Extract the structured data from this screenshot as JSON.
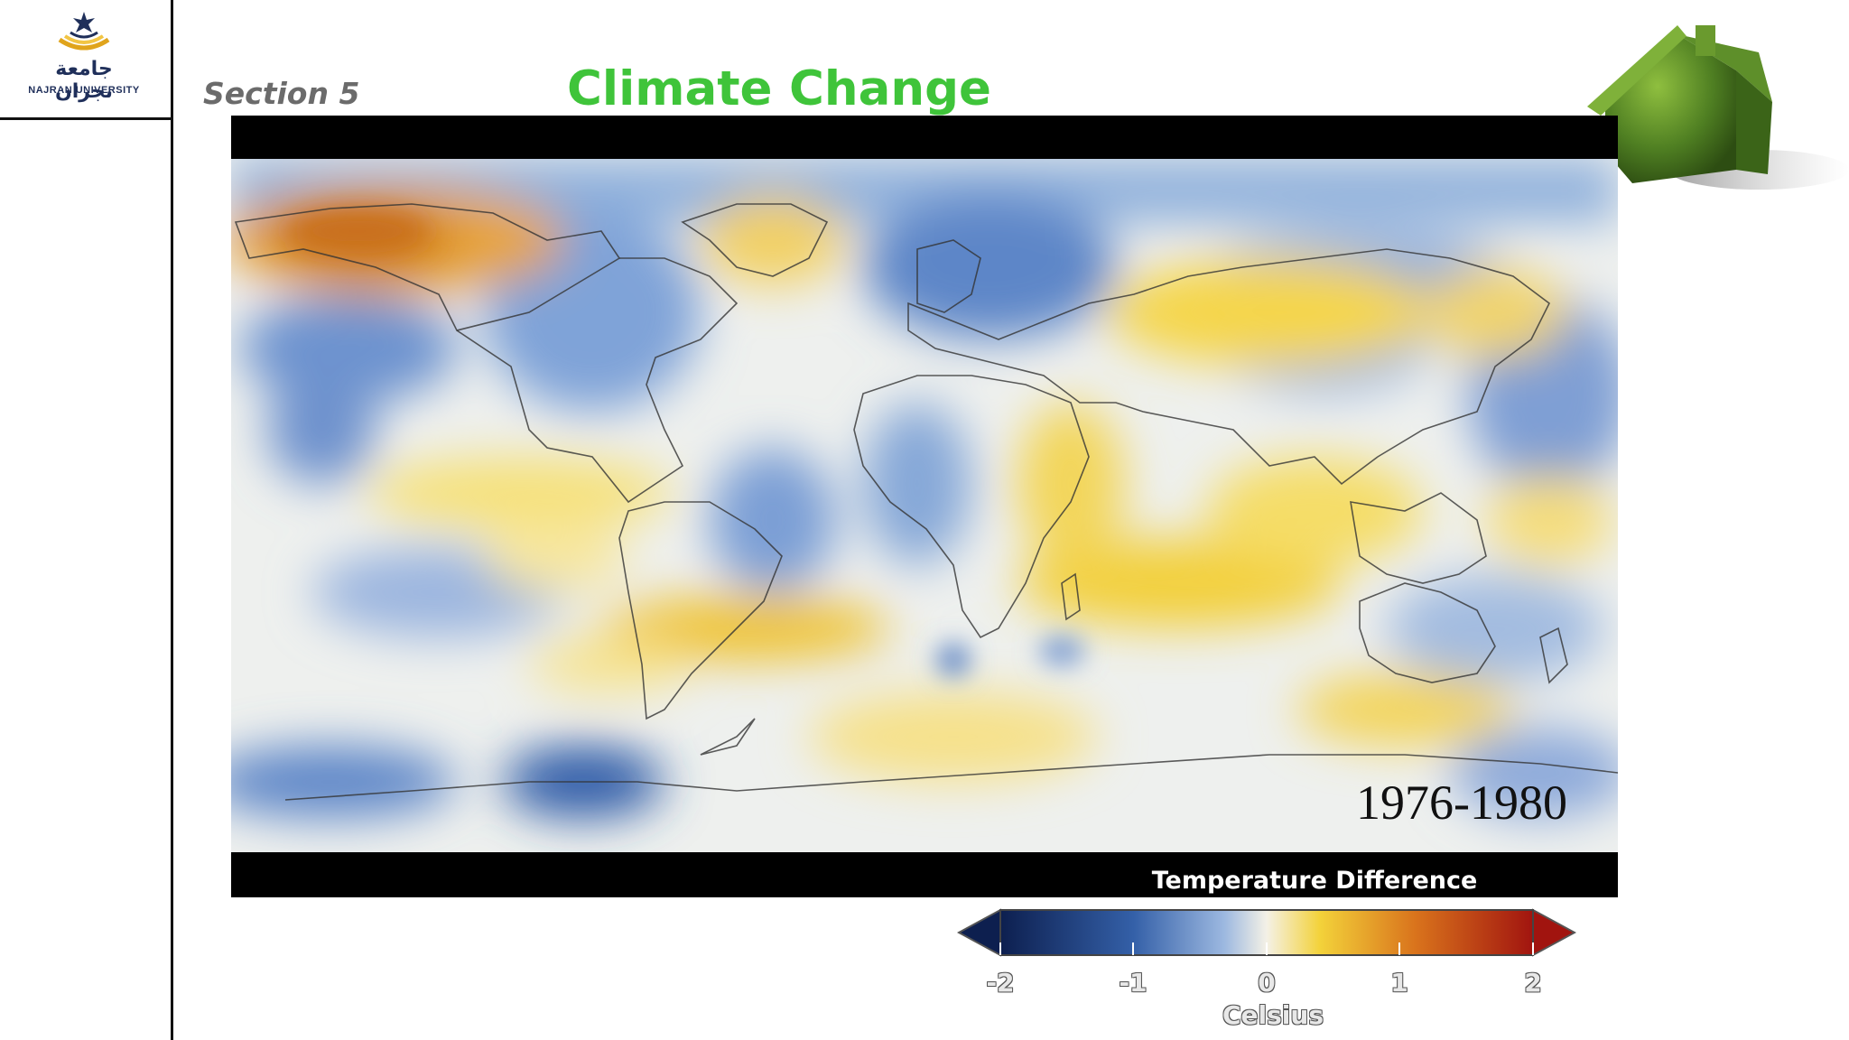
{
  "header": {
    "logo_arabic": "جامعة نجران",
    "logo_english": "NAJRAN UNIVERSITY",
    "section_label": "Section 5",
    "title": "Climate Change"
  },
  "map": {
    "year_range": "1976-1980",
    "legend_title": "Temperature Difference",
    "legend_ticks": [
      "-2",
      "-1",
      "0",
      "1",
      "2"
    ],
    "legend_unit": "Celsius",
    "scale_colors": [
      "#0d1f4f",
      "#3460a8",
      "#9cb8e0",
      "#f4f1e6",
      "#f3d23a",
      "#d9731c",
      "#a1140f"
    ]
  },
  "colors": {
    "title_green": "#3fc43a",
    "section_gray": "#6b6b6b",
    "rule_black": "#111111"
  }
}
